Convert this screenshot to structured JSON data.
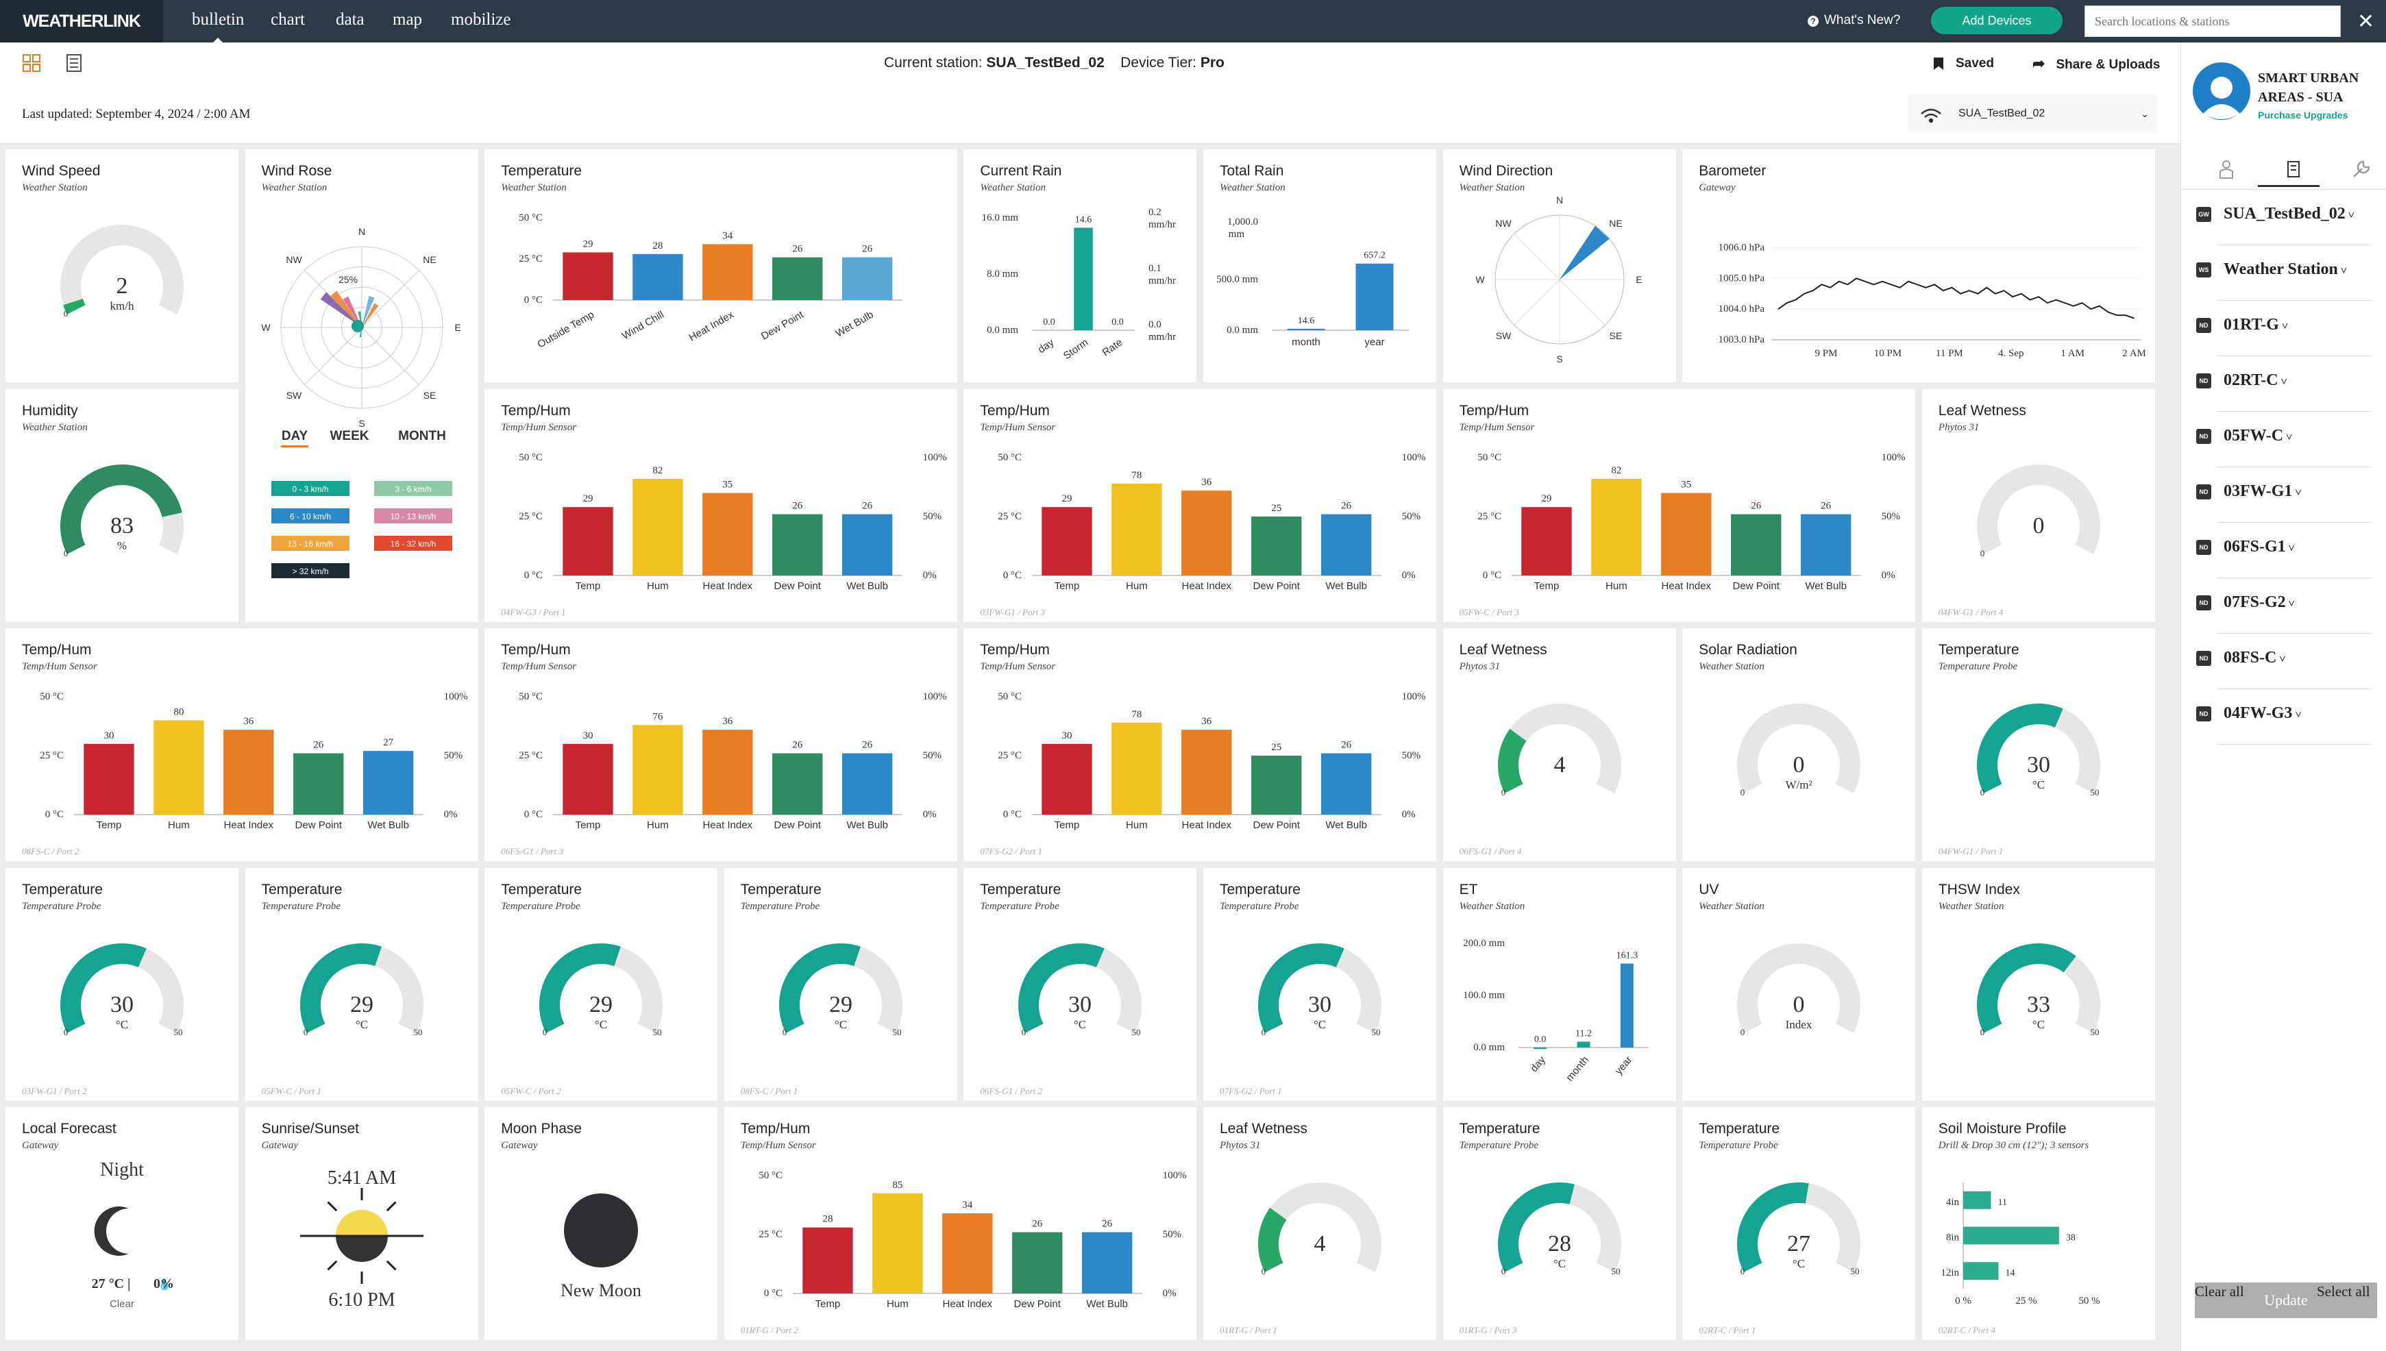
{
  "app": {
    "logo": "WEATHERLINK",
    "tabs": [
      "bulletin",
      "chart",
      "data",
      "map",
      "mobilize"
    ],
    "whats_new": "What's New?",
    "add_devices": "Add Devices",
    "search_placeholder": "Search locations & stations",
    "close": "✕"
  },
  "colors": {
    "accent": "#13a58c",
    "red": "#c8262e",
    "yellow": "#f0c11f",
    "orange": "#e97d23",
    "green": "#2e8b62",
    "blue": "#2d88c9",
    "lightblue": "#5aa8d6",
    "teal": "#15a392"
  },
  "subbar": {
    "current_station_label": "Current station:",
    "current_station": "SUA_TestBed_02",
    "tier_label": "Device Tier:",
    "tier": "Pro",
    "saved": "Saved",
    "share": "Share & Uploads",
    "last_updated": "Last updated: September 4, 2024 / 2:00 AM",
    "station_select": "SUA_TestBed_02"
  },
  "profile": {
    "name_line1": "SMART URBAN",
    "name_line2": "AREAS - SUA",
    "purchase": "Purchase Upgrades"
  },
  "devices": [
    {
      "badge": "GW",
      "name": "SUA_TestBed_02"
    },
    {
      "badge": "WS",
      "name": "Weather Station"
    },
    {
      "badge": "ND",
      "name": "01RT-G"
    },
    {
      "badge": "ND",
      "name": "02RT-C"
    },
    {
      "badge": "ND",
      "name": "05FW-C"
    },
    {
      "badge": "ND",
      "name": "03FW-G1"
    },
    {
      "badge": "ND",
      "name": "06FS-G1"
    },
    {
      "badge": "ND",
      "name": "07FS-G2"
    },
    {
      "badge": "ND",
      "name": "08FS-C"
    },
    {
      "badge": "ND",
      "name": "04FW-G3"
    }
  ],
  "panel_buttons": {
    "update": "Update",
    "clear_all": "Clear all",
    "select_all": "Select all"
  },
  "th_cats": [
    "Temp",
    "Hum",
    "Heat Index",
    "Dew Point",
    "Wet Bulb"
  ],
  "th_axis": {
    "l0": "0 °C",
    "l25": "25 °C",
    "l50": "50 °C",
    "r0": "0%",
    "r50": "50%",
    "r100": "100%"
  },
  "gauge_units": {
    "kmh": "km/h",
    "pct": "%",
    "c": "°C",
    "wm2": "W/m²",
    "index": "Index"
  },
  "chart_data": [
    {
      "id": "wind-speed",
      "type": "gauge",
      "title": "Wind Speed",
      "subtitle": "Weather Station",
      "value": 2,
      "min": "0",
      "unit": "km/h",
      "fraction": 0.04
    },
    {
      "id": "wind-rose",
      "type": "radar",
      "title": "Wind Rose",
      "subtitle": "Weather Station",
      "pct_label": "25%",
      "dirs": [
        "N",
        "NE",
        "E",
        "SE",
        "S",
        "SW",
        "W",
        "NW"
      ],
      "periods": [
        "DAY",
        "WEEK",
        "MONTH"
      ],
      "legend": [
        "0 - 3 km/h",
        "3 - 6 km/h",
        "6 - 10 km/h",
        "10 - 13 km/h",
        "13 - 16 km/h",
        "16 - 32 km/h",
        "> 32 km/h"
      ]
    },
    {
      "id": "temperature",
      "type": "bar",
      "title": "Temperature",
      "subtitle": "Weather Station",
      "categories": [
        "Outside Temp",
        "Wind Chill",
        "Heat Index",
        "Dew Point",
        "Wet Bulb"
      ],
      "values": [
        29,
        28,
        34,
        26,
        26
      ],
      "ylim": [
        0,
        50
      ],
      "yticks": [
        "0 °C",
        "25 °C",
        "50 °C"
      ]
    },
    {
      "id": "current-rain",
      "type": "bar",
      "title": "Current Rain",
      "subtitle": "Weather Station",
      "categories": [
        "day",
        "Storm",
        "Rate"
      ],
      "values": [
        0.0,
        14.6,
        0.0
      ],
      "labels": [
        "0.0",
        "14.6",
        "0.0"
      ],
      "yticks": [
        "0.0 mm",
        "8.0 mm",
        "16.0 mm"
      ],
      "rticks": [
        "0.0 mm/hr",
        "0.1 mm/hr",
        "0.2 mm/hr"
      ]
    },
    {
      "id": "total-rain",
      "type": "bar",
      "title": "Total Rain",
      "subtitle": "Weather Station",
      "categories": [
        "month",
        "year"
      ],
      "values": [
        14.6,
        657.2
      ],
      "labels": [
        "14.6",
        "657.2"
      ],
      "yticks": [
        "0.0 mm",
        "500.0 mm",
        "1,000.0 mm"
      ]
    },
    {
      "id": "wind-direction",
      "type": "compass",
      "title": "Wind Direction",
      "subtitle": "Weather Station",
      "dirs": [
        "N",
        "NE",
        "E",
        "SE",
        "S",
        "SW",
        "W",
        "NW"
      ],
      "direction": "NE"
    },
    {
      "id": "barometer",
      "type": "line",
      "title": "Barometer",
      "subtitle": "Gateway",
      "yticks": [
        "1003.0 hPa",
        "1004.0 hPa",
        "1005.0 hPa",
        "1006.0 hPa"
      ],
      "xticks": [
        "9 PM",
        "10 PM",
        "11 PM",
        "4. Sep",
        "1 AM",
        "2 AM"
      ],
      "ylim": [
        1003,
        1006.3
      ],
      "values": [
        1004.0,
        1004.2,
        1004.3,
        1004.5,
        1004.6,
        1004.8,
        1004.7,
        1004.9,
        1004.8,
        1005.0,
        1004.9,
        1004.8,
        1004.9,
        1004.8,
        1004.7,
        1004.9,
        1004.8,
        1004.7,
        1004.8,
        1004.6,
        1004.7,
        1004.5,
        1004.6,
        1004.5,
        1004.7,
        1004.5,
        1004.6,
        1004.4,
        1004.5,
        1004.3,
        1004.4,
        1004.2,
        1004.3,
        1004.2,
        1004.1,
        1004.2,
        1004.0,
        1004.1,
        1003.9,
        1003.8,
        1003.8,
        1003.7
      ]
    },
    {
      "id": "humidity",
      "type": "gauge",
      "title": "Humidity",
      "subtitle": "Weather Station",
      "value": 83,
      "min": "0",
      "unit": "%",
      "fraction": 0.83
    },
    {
      "id": "th-04fw-g3",
      "type": "bar",
      "title": "Temp/Hum",
      "subtitle": "Temp/Hum Sensor",
      "values": [
        29,
        82,
        35,
        26,
        26
      ],
      "footer": "04FW-G3 / Port 1"
    },
    {
      "id": "th-03fw-g1",
      "type": "bar",
      "title": "Temp/Hum",
      "subtitle": "Temp/Hum Sensor",
      "values": [
        29,
        78,
        36,
        25,
        26
      ],
      "footer": "03FW-G1 / Port 3"
    },
    {
      "id": "th-05fw-c",
      "type": "bar",
      "title": "Temp/Hum",
      "subtitle": "Temp/Hum Sensor",
      "values": [
        29,
        82,
        35,
        26,
        26
      ],
      "footer": "05FW-C / Port 3"
    },
    {
      "id": "leaf-wetness-1",
      "type": "gauge",
      "title": "Leaf Wetness",
      "subtitle": "Phytos 31",
      "value": 0,
      "min": "0",
      "unit": "",
      "fraction": 0,
      "footer": "04FW-G1 / Port 4"
    },
    {
      "id": "th-08fs-c",
      "type": "bar",
      "title": "Temp/Hum",
      "subtitle": "Temp/Hum Sensor",
      "values": [
        30,
        80,
        36,
        26,
        27
      ],
      "footer": "08FS-C / Port 2"
    },
    {
      "id": "th-06fs-g1",
      "type": "bar",
      "title": "Temp/Hum",
      "subtitle": "Temp/Hum Sensor",
      "values": [
        30,
        76,
        36,
        26,
        26
      ],
      "footer": "06FS-G1 / Port 3"
    },
    {
      "id": "th-07fs-g2",
      "type": "bar",
      "title": "Temp/Hum",
      "subtitle": "Temp/Hum Sensor",
      "values": [
        30,
        78,
        36,
        25,
        26
      ],
      "footer": "07FS-G2 / Port 1"
    },
    {
      "id": "leaf-wetness-2",
      "type": "gauge",
      "title": "Leaf Wetness",
      "subtitle": "Phytos 31",
      "value": 4,
      "min": "0",
      "unit": "",
      "fraction": 0.27,
      "footer": "06FS-G1 / Port 4"
    },
    {
      "id": "solar-radiation",
      "type": "gauge",
      "title": "Solar Radiation",
      "subtitle": "Weather Station",
      "value": 0,
      "min": "0",
      "unit": "W/m²",
      "fraction": 0
    },
    {
      "id": "temp-probe-1",
      "type": "gauge",
      "title": "Temperature",
      "subtitle": "Temperature Probe",
      "value": 30,
      "min": "0",
      "max": "50",
      "unit": "°C",
      "fraction": 0.6,
      "footer": "04FW-G1 / Port 1"
    },
    {
      "id": "temp-probe-2",
      "type": "gauge",
      "title": "Temperature",
      "subtitle": "Temperature Probe",
      "value": 30,
      "min": "0",
      "max": "50",
      "unit": "°C",
      "fraction": 0.6,
      "footer": "03FW-G1 / Port 2"
    },
    {
      "id": "temp-probe-3",
      "type": "gauge",
      "title": "Temperature",
      "subtitle": "Temperature Probe",
      "value": 29,
      "min": "0",
      "max": "50",
      "unit": "°C",
      "fraction": 0.58,
      "footer": "05FW-C / Port 1"
    },
    {
      "id": "temp-probe-4",
      "type": "gauge",
      "title": "Temperature",
      "subtitle": "Temperature Probe",
      "value": 29,
      "min": "0",
      "max": "50",
      "unit": "°C",
      "fraction": 0.58,
      "footer": "05FW-C / Port 2"
    },
    {
      "id": "temp-probe-5",
      "type": "gauge",
      "title": "Temperature",
      "subtitle": "Temperature Probe",
      "value": 29,
      "min": "0",
      "max": "50",
      "unit": "°C",
      "fraction": 0.58,
      "footer": "08FS-C / Port 1"
    },
    {
      "id": "temp-probe-6",
      "type": "gauge",
      "title": "Temperature",
      "subtitle": "Temperature Probe",
      "value": 30,
      "min": "0",
      "max": "50",
      "unit": "°C",
      "fraction": 0.6,
      "footer": "06FS-G1 / Port 2"
    },
    {
      "id": "temp-probe-7",
      "type": "gauge",
      "title": "Temperature",
      "subtitle": "Temperature Probe",
      "value": 30,
      "min": "0",
      "max": "50",
      "unit": "°C",
      "fraction": 0.6,
      "footer": "07FS-G2 / Port 1"
    },
    {
      "id": "et",
      "type": "bar",
      "title": "ET",
      "subtitle": "Weather Station",
      "categories": [
        "day",
        "month",
        "year"
      ],
      "values": [
        0.0,
        11.2,
        161.3
      ],
      "labels": [
        "0.0",
        "11.2",
        "161.3"
      ],
      "yticks": [
        "0.0 mm",
        "100.0 mm",
        "200.0 mm"
      ]
    },
    {
      "id": "uv",
      "type": "gauge",
      "title": "UV",
      "subtitle": "Weather Station",
      "value": 0,
      "min": "0",
      "unit": "Index",
      "fraction": 0
    },
    {
      "id": "thsw",
      "type": "gauge",
      "title": "THSW Index",
      "subtitle": "Weather Station",
      "value": 33,
      "min": "0",
      "max": "50",
      "unit": "°C",
      "fraction": 0.66
    },
    {
      "id": "forecast",
      "type": "widget",
      "title": "Local Forecast",
      "subtitle": "Gateway",
      "period": "Night",
      "temp": "27 °C |",
      "rain": "0%",
      "condition": "Clear"
    },
    {
      "id": "sunrise",
      "type": "widget",
      "title": "Sunrise/Sunset",
      "subtitle": "Gateway",
      "sunrise": "5:41 AM",
      "sunset": "6:10 PM"
    },
    {
      "id": "moon",
      "type": "widget",
      "title": "Moon Phase",
      "subtitle": "Gateway",
      "phase": "New Moon"
    },
    {
      "id": "th-01rt-g",
      "type": "bar",
      "title": "Temp/Hum",
      "subtitle": "Temp/Hum Sensor",
      "values": [
        28,
        85,
        34,
        26,
        26
      ],
      "footer": "01RT-G / Port 2"
    },
    {
      "id": "leaf-wetness-3",
      "type": "gauge",
      "title": "Leaf Wetness",
      "subtitle": "Phytos 31",
      "value": 4,
      "min": "0",
      "unit": "",
      "fraction": 0.27,
      "footer": "01RT-G / Port 1"
    },
    {
      "id": "temp-probe-8",
      "type": "gauge",
      "title": "Temperature",
      "subtitle": "Temperature Probe",
      "value": 28,
      "min": "0",
      "max": "50",
      "unit": "°C",
      "fraction": 0.56,
      "footer": "01RT-G / Port 3"
    },
    {
      "id": "temp-probe-9",
      "type": "gauge",
      "title": "Temperature",
      "subtitle": "Temperature Probe",
      "value": 27,
      "min": "0",
      "max": "50",
      "unit": "°C",
      "fraction": 0.54,
      "footer": "02RT-C / Port 1"
    },
    {
      "id": "soil-moisture",
      "type": "bar",
      "title": "Soil Moisture Profile",
      "subtitle": "Drill & Drop 30 cm (12\"); 3 sensors",
      "categories": [
        "4in",
        "8in",
        "12in"
      ],
      "values": [
        11,
        38,
        14
      ],
      "xticks": [
        "0 %",
        "25 %",
        "50 %"
      ],
      "footer": "02RT-C / Port 4"
    }
  ]
}
